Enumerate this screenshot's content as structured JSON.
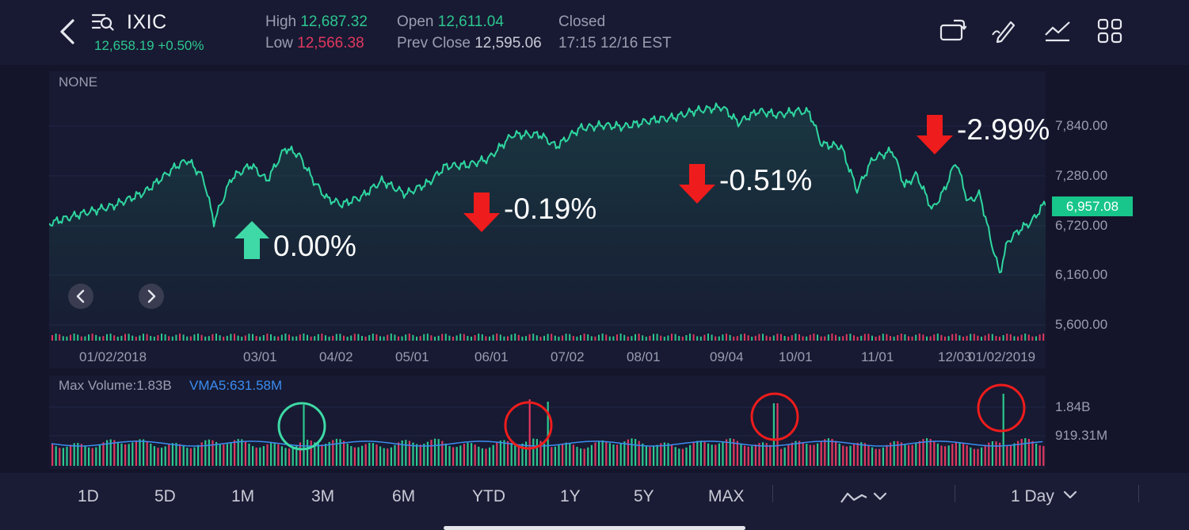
{
  "header": {
    "ticker": "IXIC",
    "last_price": "12,658.19 +0.50%",
    "high_label": "High",
    "high_value": "12,687.32",
    "low_label": "Low",
    "low_value": "12,566.38",
    "open_label": "Open",
    "open_value": "12,611.04",
    "prev_close_label": "Prev Close",
    "prev_close_value": "12,595.06",
    "status": "Closed",
    "status_time": "17:15 12/16 EST",
    "icons": [
      "back-icon",
      "search-list-icon",
      "rotate-screen-icon",
      "draw-icon",
      "indicator-icon",
      "grid-icon"
    ]
  },
  "chart": {
    "indicator_label": "NONE",
    "current_price_tag": "6,957.08",
    "y_ticks": [
      "7,840.00",
      "7,280.00",
      "6,720.00",
      "6,160.00",
      "5,600.00"
    ],
    "x_ticks": [
      "01/02/2018",
      "03/01",
      "04/02",
      "05/01",
      "06/01",
      "07/02",
      "08/01",
      "09/04",
      "10/01",
      "11/01",
      "12/03",
      "01/02/2019"
    ],
    "annotations": [
      {
        "text": "0.00%",
        "direction": "up",
        "color": "#3ed9a6"
      },
      {
        "text": "-0.19%",
        "direction": "down",
        "color": "#ee1c1c"
      },
      {
        "text": "-0.51%",
        "direction": "down",
        "color": "#ee1c1c"
      },
      {
        "text": "-2.99%",
        "direction": "down",
        "color": "#ee1c1c"
      }
    ],
    "line_color": "#2fd6a0",
    "up_color": "#2cc78f",
    "down_color": "#e0385f"
  },
  "volume": {
    "max_volume_label": "Max Volume:1.83B",
    "vma_label": "VMA5:631.58M",
    "y_ticks": [
      "1.84B",
      "919.31M"
    ],
    "vma_color": "#3b8cf0"
  },
  "ranges": [
    "1D",
    "5D",
    "1M",
    "3M",
    "6M",
    "YTD",
    "1Y",
    "5Y",
    "MAX"
  ],
  "chart_type_icon": "line-chart-icon",
  "interval": "1 Day"
}
